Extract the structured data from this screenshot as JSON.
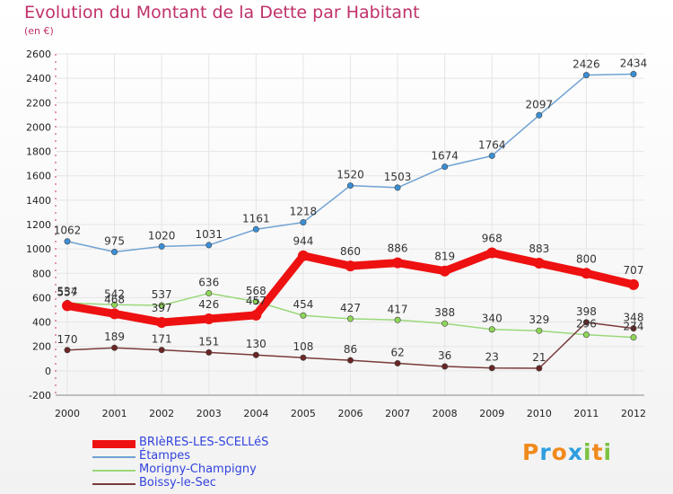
{
  "title": "Evolution du Montant de la Dette par Habitant",
  "unit_label": "(en €)",
  "logo_text": "Proxiti",
  "colors": {
    "title": "#c0306a",
    "legend_text": "#3344dd",
    "grid": "#e5e5e5",
    "axis": "#888888"
  },
  "chart_data": {
    "type": "line",
    "title": "Evolution du Montant de la Dette par Habitant",
    "ylabel": "(en €)",
    "xlabel": "",
    "x": [
      2000,
      2001,
      2002,
      2003,
      2004,
      2005,
      2006,
      2007,
      2008,
      2009,
      2010,
      2011,
      2012
    ],
    "ylim": [
      -200,
      2600
    ],
    "yticks": [
      -200,
      0,
      200,
      400,
      600,
      800,
      1000,
      1200,
      1400,
      1600,
      1800,
      2000,
      2200,
      2400,
      2600
    ],
    "grid": true,
    "legend_position": "bottom-left",
    "series": [
      {
        "name": "Étampes",
        "color": "#6fa2d3",
        "marker": "#3a8fd6",
        "values": [
          1062,
          975,
          1020,
          1031,
          1161,
          1218,
          1520,
          1503,
          1674,
          1764,
          2097,
          2426,
          2434
        ]
      },
      {
        "name": "Morigny-Champigny",
        "color": "#9ad87a",
        "marker": "#8fd657",
        "values": [
          557,
          542,
          537,
          636,
          568,
          454,
          427,
          417,
          388,
          340,
          329,
          296,
          274
        ]
      },
      {
        "name": "Boissy-le-Sec",
        "color": "#7a3a3a",
        "marker": "#6b2525",
        "values": [
          170,
          189,
          171,
          151,
          130,
          108,
          86,
          62,
          36,
          23,
          21,
          398,
          348
        ]
      },
      {
        "name": "BRIèRES-LES-SCELLéS",
        "color": "#ee1111",
        "marker": "#ee1111",
        "values": [
          534,
          468,
          397,
          426,
          457,
          944,
          860,
          886,
          819,
          968,
          883,
          800,
          707
        ]
      }
    ],
    "legend": [
      "BRIèRES-LES-SCELLéS",
      "Étampes",
      "Morigny-Champigny",
      "Boissy-le-Sec"
    ]
  }
}
